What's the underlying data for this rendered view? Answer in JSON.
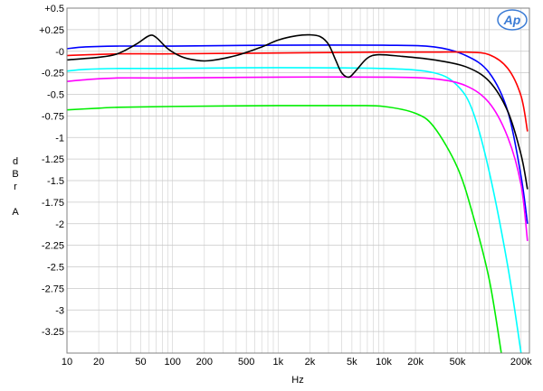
{
  "chart_data": {
    "type": "line",
    "title": "",
    "logo_text": "Ap",
    "xlabel": "Hz",
    "ylabel": [
      "d",
      "B",
      "r",
      "",
      "A"
    ],
    "x_scale": "log",
    "xlim": [
      10,
      240000
    ],
    "ylim": [
      -3.5,
      0.5
    ],
    "grid": true,
    "x_tick_values": [
      10,
      20,
      50,
      100,
      200,
      500,
      1000,
      2000,
      5000,
      10000,
      20000,
      50000,
      200000
    ],
    "x_tick_labels": [
      "10",
      "20",
      "50",
      "100",
      "200",
      "500",
      "1k",
      "2k",
      "5k",
      "10k",
      "20k",
      "50k",
      "200k"
    ],
    "y_tick_values": [
      0.5,
      0.25,
      0,
      -0.25,
      -0.5,
      -0.75,
      -1,
      -1.25,
      -1.5,
      -1.75,
      -2,
      -2.25,
      -2.5,
      -2.75,
      -3,
      -3.25
    ],
    "y_tick_labels": [
      "+0.5",
      "+0.25",
      "-0",
      "-0.25",
      "-0.5",
      "-0.75",
      "-1",
      "-1.25",
      "-1.5",
      "-1.75",
      "-2",
      "-2.25",
      "-2.5",
      "-2.75",
      "-3",
      "-3.25"
    ],
    "series": [
      {
        "color": "#0000ff",
        "points": [
          [
            10,
            0.03
          ],
          [
            15,
            0.05
          ],
          [
            30,
            0.06
          ],
          [
            100,
            0.06
          ],
          [
            1000,
            0.07
          ],
          [
            10000,
            0.07
          ],
          [
            30000,
            0.05
          ],
          [
            60000,
            -0.05
          ],
          [
            100000,
            -0.25
          ],
          [
            150000,
            -0.7
          ],
          [
            200000,
            -1.45
          ],
          [
            230000,
            -2.0
          ]
        ]
      },
      {
        "color": "#ff0000",
        "points": [
          [
            10,
            -0.05
          ],
          [
            30,
            -0.03
          ],
          [
            100,
            -0.03
          ],
          [
            1000,
            -0.02
          ],
          [
            10000,
            -0.01
          ],
          [
            30000,
            -0.01
          ],
          [
            60000,
            -0.01
          ],
          [
            100000,
            -0.04
          ],
          [
            150000,
            -0.2
          ],
          [
            200000,
            -0.52
          ],
          [
            230000,
            -0.93
          ]
        ]
      },
      {
        "color": "#00ffff",
        "points": [
          [
            10,
            -0.23
          ],
          [
            15,
            -0.21
          ],
          [
            30,
            -0.2
          ],
          [
            100,
            -0.2
          ],
          [
            1000,
            -0.19
          ],
          [
            10000,
            -0.2
          ],
          [
            30000,
            -0.25
          ],
          [
            50000,
            -0.4
          ],
          [
            70000,
            -0.7
          ],
          [
            100000,
            -1.4
          ],
          [
            150000,
            -2.5
          ],
          [
            200000,
            -3.5
          ]
        ]
      },
      {
        "color": "#ff00ff",
        "points": [
          [
            10,
            -0.35
          ],
          [
            15,
            -0.33
          ],
          [
            30,
            -0.31
          ],
          [
            100,
            -0.31
          ],
          [
            1000,
            -0.3
          ],
          [
            10000,
            -0.3
          ],
          [
            30000,
            -0.32
          ],
          [
            60000,
            -0.4
          ],
          [
            100000,
            -0.6
          ],
          [
            150000,
            -1.0
          ],
          [
            200000,
            -1.55
          ],
          [
            230000,
            -2.2
          ]
        ]
      },
      {
        "color": "#00ee00",
        "points": [
          [
            10,
            -0.68
          ],
          [
            20,
            -0.66
          ],
          [
            30,
            -0.65
          ],
          [
            100,
            -0.64
          ],
          [
            1000,
            -0.63
          ],
          [
            5000,
            -0.63
          ],
          [
            10000,
            -0.64
          ],
          [
            20000,
            -0.72
          ],
          [
            30000,
            -0.88
          ],
          [
            50000,
            -1.35
          ],
          [
            70000,
            -1.9
          ],
          [
            100000,
            -2.65
          ],
          [
            130000,
            -3.5
          ]
        ]
      },
      {
        "color": "#000000",
        "points": [
          [
            10,
            -0.1
          ],
          [
            20,
            -0.07
          ],
          [
            30,
            -0.03
          ],
          [
            45,
            0.08
          ],
          [
            60,
            0.18
          ],
          [
            70,
            0.16
          ],
          [
            90,
            0.03
          ],
          [
            120,
            -0.06
          ],
          [
            160,
            -0.1
          ],
          [
            220,
            -0.11
          ],
          [
            400,
            -0.05
          ],
          [
            700,
            0.05
          ],
          [
            1000,
            0.13
          ],
          [
            1500,
            0.18
          ],
          [
            2000,
            0.19
          ],
          [
            2500,
            0.17
          ],
          [
            3000,
            0.08
          ],
          [
            3500,
            -0.1
          ],
          [
            4000,
            -0.25
          ],
          [
            4700,
            -0.3
          ],
          [
            5500,
            -0.22
          ],
          [
            7000,
            -0.08
          ],
          [
            9000,
            -0.04
          ],
          [
            15000,
            -0.06
          ],
          [
            30000,
            -0.1
          ],
          [
            60000,
            -0.18
          ],
          [
            100000,
            -0.35
          ],
          [
            150000,
            -0.7
          ],
          [
            200000,
            -1.2
          ],
          [
            230000,
            -1.6
          ]
        ]
      }
    ]
  }
}
